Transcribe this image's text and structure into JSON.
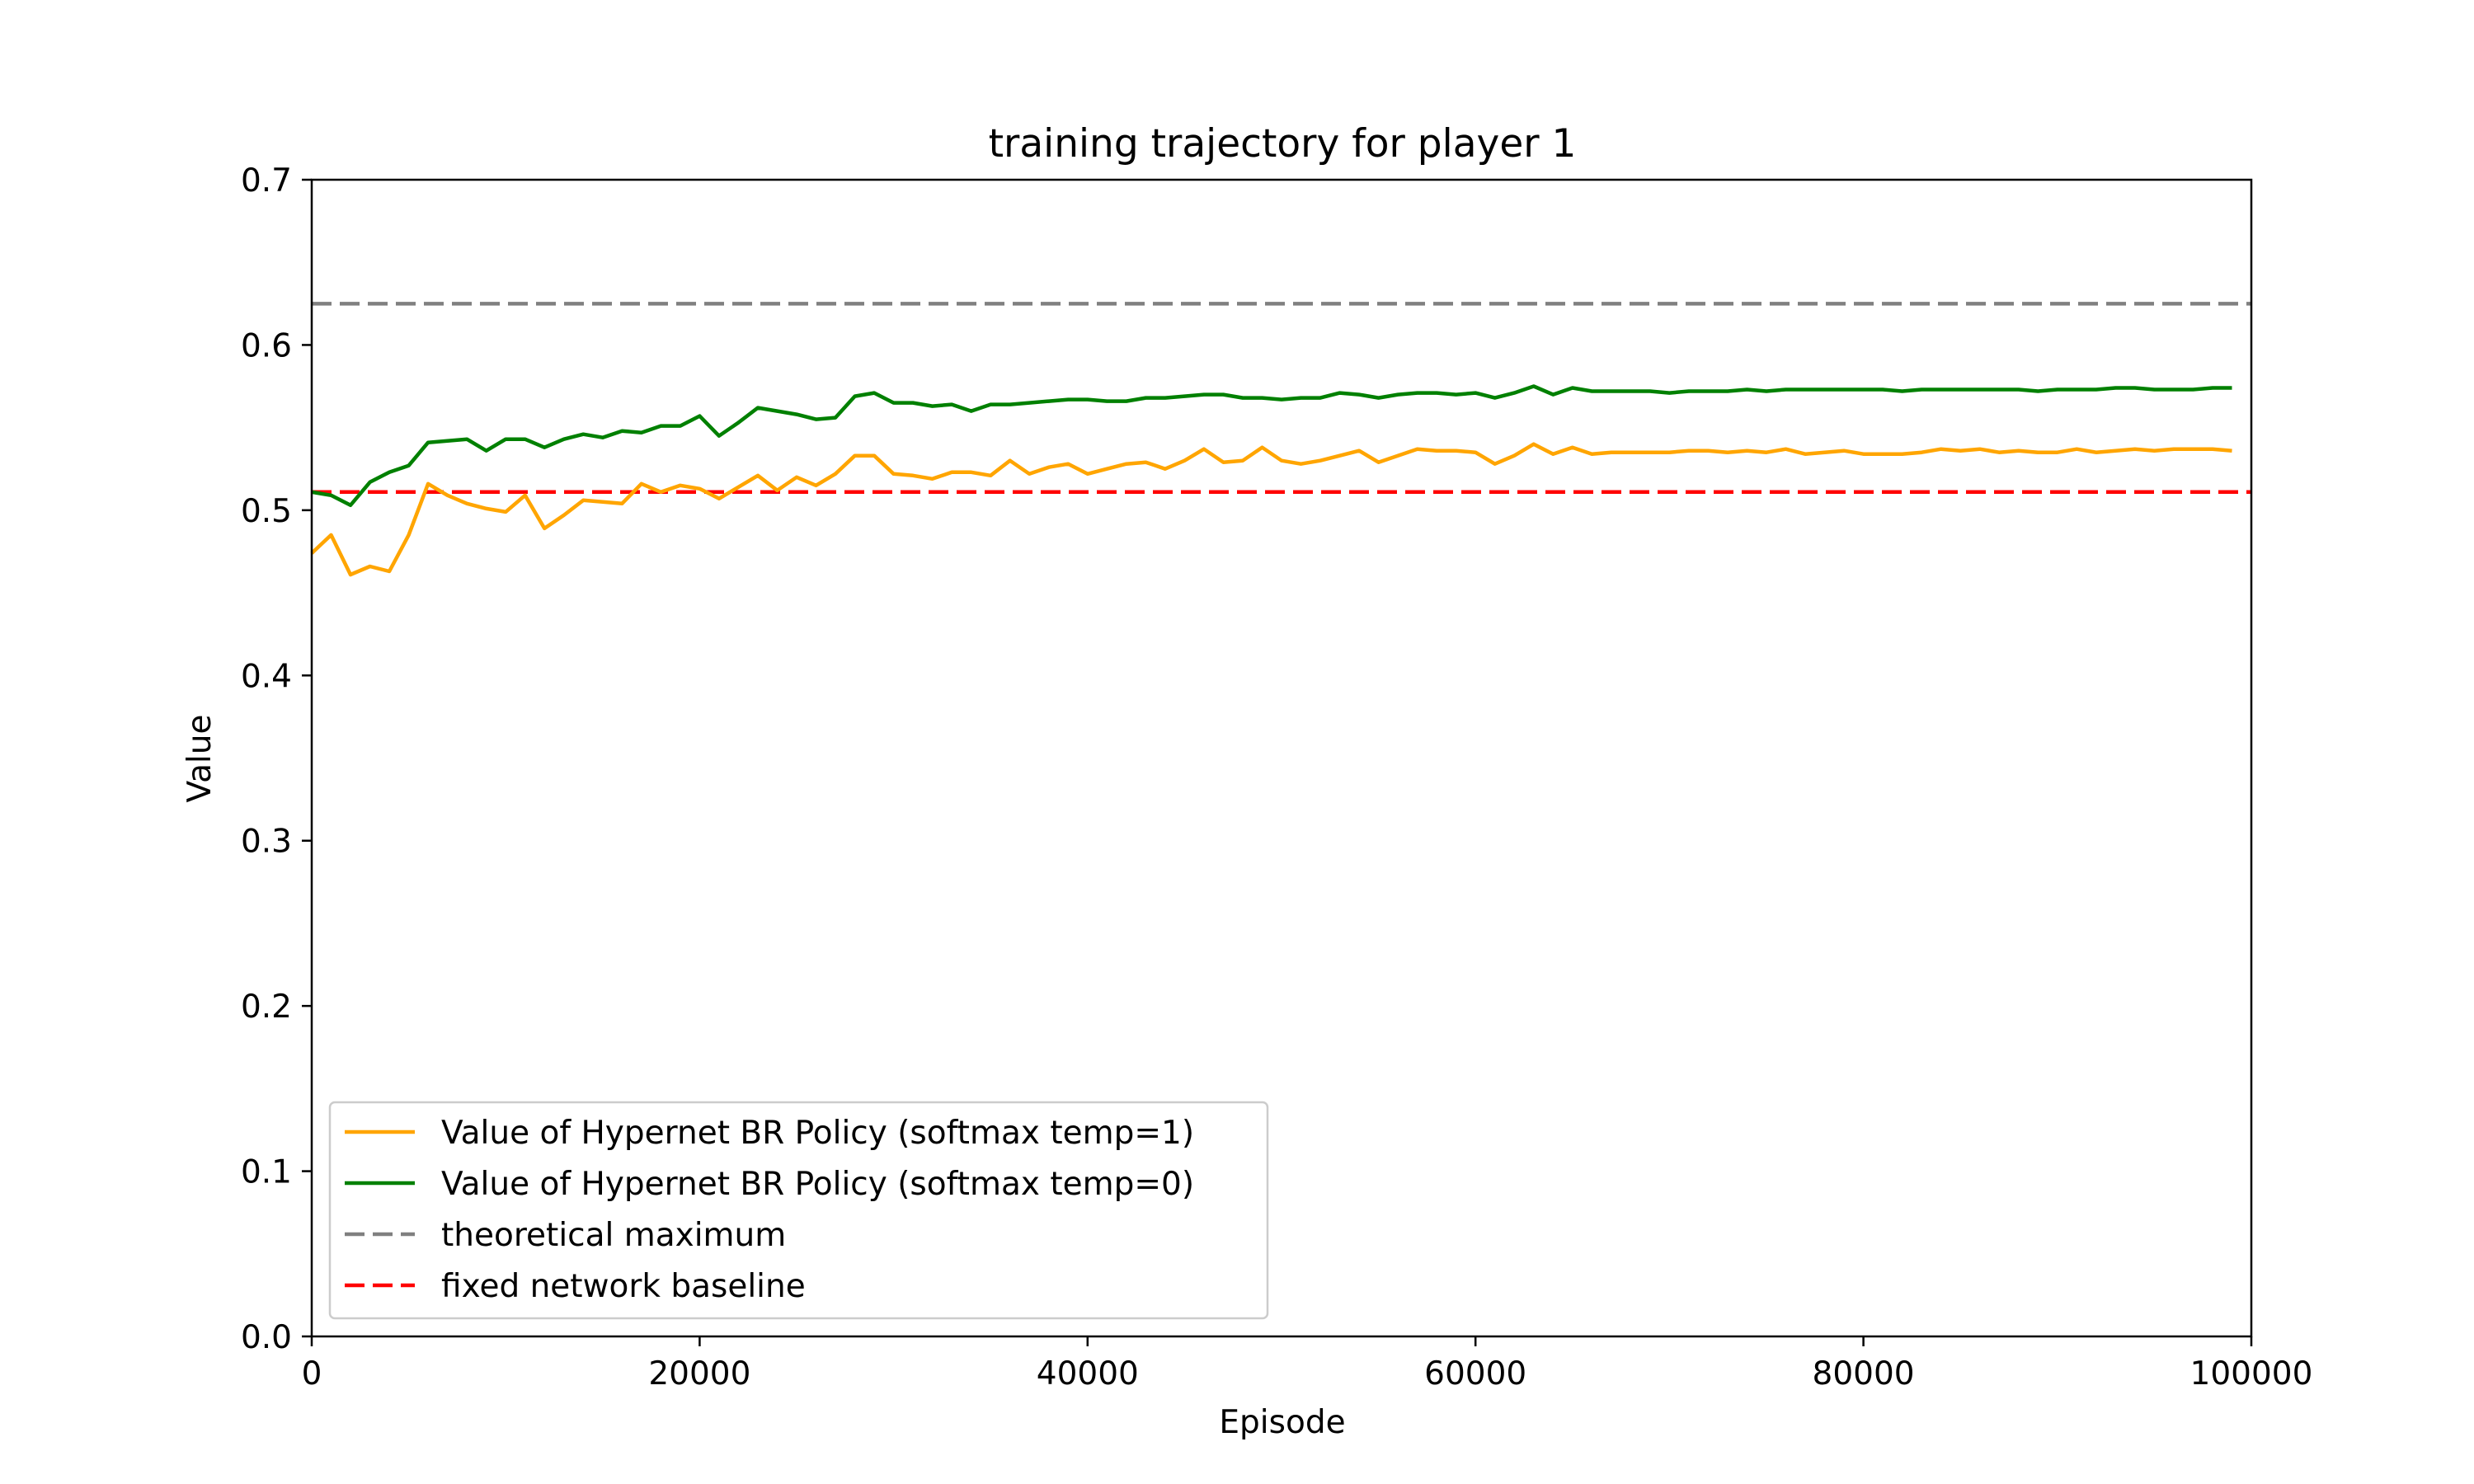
{
  "chart_data": {
    "type": "line",
    "title": "training trajectory for player 1",
    "xlabel": "Episode",
    "ylabel": "Value",
    "xlim": [
      0,
      100000
    ],
    "ylim": [
      0.0,
      0.7
    ],
    "x_ticks": [
      0,
      20000,
      40000,
      60000,
      80000,
      100000
    ],
    "x_tick_labels": [
      "0",
      "20000",
      "40000",
      "60000",
      "80000",
      "100000"
    ],
    "y_ticks": [
      0.0,
      0.1,
      0.2,
      0.3,
      0.4,
      0.5,
      0.6,
      0.7
    ],
    "y_tick_labels": [
      "0.0",
      "0.1",
      "0.2",
      "0.3",
      "0.4",
      "0.5",
      "0.6",
      "0.7"
    ],
    "grid": false,
    "legend_position": "lower-left",
    "x": [
      0,
      1000,
      2000,
      3000,
      4000,
      5000,
      6000,
      7000,
      8000,
      9000,
      10000,
      11000,
      12000,
      13000,
      14000,
      15000,
      16000,
      17000,
      18000,
      19000,
      20000,
      21000,
      22000,
      23000,
      24000,
      25000,
      26000,
      27000,
      28000,
      29000,
      30000,
      31000,
      32000,
      33000,
      34000,
      35000,
      36000,
      37000,
      38000,
      39000,
      40000,
      41000,
      42000,
      43000,
      44000,
      45000,
      46000,
      47000,
      48000,
      49000,
      50000,
      51000,
      52000,
      53000,
      54000,
      55000,
      56000,
      57000,
      58000,
      59000,
      60000,
      61000,
      62000,
      63000,
      64000,
      65000,
      66000,
      67000,
      68000,
      69000,
      70000,
      71000,
      72000,
      73000,
      74000,
      75000,
      76000,
      77000,
      78000,
      79000,
      80000,
      81000,
      82000,
      83000,
      84000,
      85000,
      86000,
      87000,
      88000,
      89000,
      90000,
      91000,
      92000,
      93000,
      94000,
      95000,
      96000,
      97000,
      98000,
      99000
    ],
    "series": [
      {
        "name": "Value of Hypernet BR Policy (softmax temp=1)",
        "color": "#ffa500",
        "style": "solid",
        "values": [
          0.474,
          0.485,
          0.461,
          0.466,
          0.463,
          0.485,
          0.516,
          0.509,
          0.504,
          0.501,
          0.499,
          0.509,
          0.489,
          0.497,
          0.506,
          0.505,
          0.504,
          0.516,
          0.511,
          0.515,
          0.513,
          0.507,
          0.514,
          0.521,
          0.512,
          0.52,
          0.515,
          0.522,
          0.533,
          0.533,
          0.522,
          0.521,
          0.519,
          0.523,
          0.523,
          0.521,
          0.53,
          0.522,
          0.526,
          0.528,
          0.522,
          0.525,
          0.528,
          0.529,
          0.525,
          0.53,
          0.537,
          0.529,
          0.53,
          0.538,
          0.53,
          0.528,
          0.53,
          0.533,
          0.536,
          0.529,
          0.533,
          0.537,
          0.536,
          0.536,
          0.535,
          0.528,
          0.533,
          0.54,
          0.534,
          0.538,
          0.534,
          0.535,
          0.535,
          0.535,
          0.535,
          0.536,
          0.536,
          0.535,
          0.536,
          0.535,
          0.537,
          0.534,
          0.535,
          0.536,
          0.534,
          0.534,
          0.534,
          0.535,
          0.537,
          0.536,
          0.537,
          0.535,
          0.536,
          0.535,
          0.535,
          0.537,
          0.535,
          0.536,
          0.537,
          0.536,
          0.537,
          0.537,
          0.537,
          0.536
        ]
      },
      {
        "name": "Value of Hypernet BR Policy (softmax temp=0)",
        "color": "#008000",
        "style": "solid",
        "values": [
          0.511,
          0.509,
          0.503,
          0.517,
          0.523,
          0.527,
          0.541,
          0.542,
          0.543,
          0.536,
          0.543,
          0.543,
          0.538,
          0.543,
          0.546,
          0.544,
          0.548,
          0.547,
          0.551,
          0.551,
          0.557,
          0.545,
          0.553,
          0.562,
          0.56,
          0.558,
          0.555,
          0.556,
          0.569,
          0.571,
          0.565,
          0.565,
          0.563,
          0.564,
          0.56,
          0.564,
          0.564,
          0.565,
          0.566,
          0.567,
          0.567,
          0.566,
          0.566,
          0.568,
          0.568,
          0.569,
          0.57,
          0.57,
          0.568,
          0.568,
          0.567,
          0.568,
          0.568,
          0.571,
          0.57,
          0.568,
          0.57,
          0.571,
          0.571,
          0.57,
          0.571,
          0.568,
          0.571,
          0.575,
          0.57,
          0.574,
          0.572,
          0.572,
          0.572,
          0.572,
          0.571,
          0.572,
          0.572,
          0.572,
          0.573,
          0.572,
          0.573,
          0.573,
          0.573,
          0.573,
          0.573,
          0.573,
          0.572,
          0.573,
          0.573,
          0.573,
          0.573,
          0.573,
          0.573,
          0.572,
          0.573,
          0.573,
          0.573,
          0.574,
          0.574,
          0.573,
          0.573,
          0.573,
          0.574,
          0.574
        ]
      }
    ],
    "hlines": [
      {
        "name": "theoretical maximum",
        "value": 0.625,
        "color": "#808080",
        "style": "dashed"
      },
      {
        "name": "fixed network baseline",
        "value": 0.511,
        "color": "#ff0000",
        "style": "dashed"
      }
    ]
  }
}
